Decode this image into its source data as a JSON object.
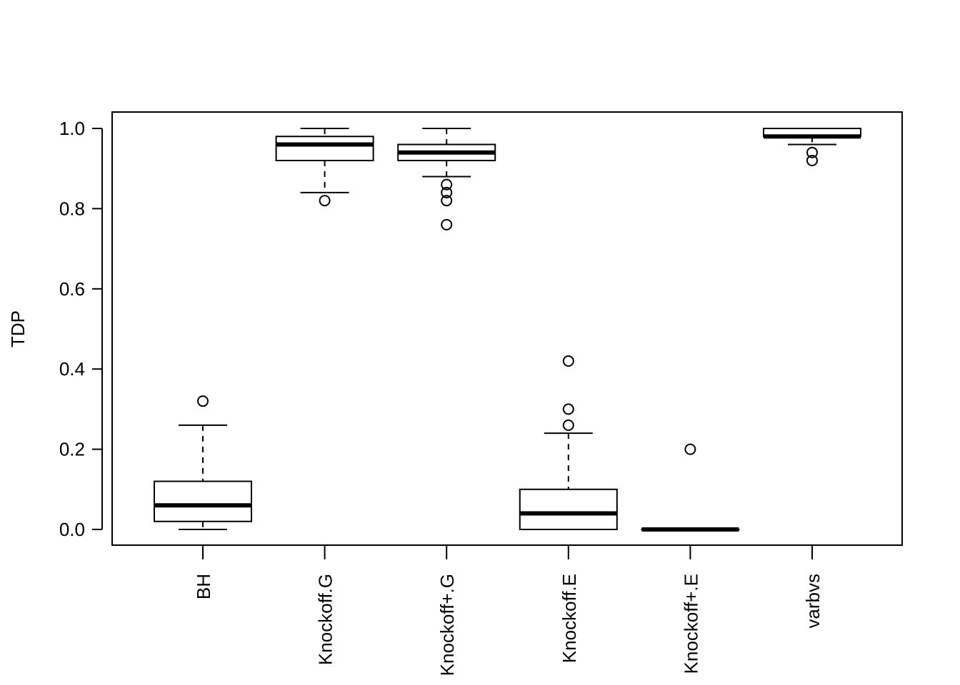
{
  "chart_data": {
    "type": "boxplot",
    "title": "",
    "xlabel": "",
    "ylabel": "TDP",
    "ylim": [
      -0.04,
      1.04
    ],
    "yticks": [
      0.0,
      0.2,
      0.4,
      0.6,
      0.8,
      1.0
    ],
    "ytick_labels": [
      "0.0",
      "0.2",
      "0.4",
      "0.6",
      "0.8",
      "1.0"
    ],
    "groups": [
      {
        "name": "BH",
        "whisker_low": 0.0,
        "q1": 0.02,
        "median": 0.06,
        "q3": 0.12,
        "whisker_high": 0.26,
        "outliers": [
          0.32
        ]
      },
      {
        "name": "Knockoff.G",
        "whisker_low": 0.84,
        "q1": 0.92,
        "median": 0.96,
        "q3": 0.98,
        "whisker_high": 1.0,
        "outliers": [
          0.82
        ]
      },
      {
        "name": "Knockoff+.G",
        "whisker_low": 0.88,
        "q1": 0.92,
        "median": 0.94,
        "q3": 0.96,
        "whisker_high": 1.0,
        "outliers": [
          0.86,
          0.84,
          0.82,
          0.76
        ]
      },
      {
        "name": "Knockoff.E",
        "whisker_low": 0.0,
        "q1": 0.0,
        "median": 0.04,
        "q3": 0.1,
        "whisker_high": 0.24,
        "outliers": [
          0.42,
          0.3,
          0.26
        ]
      },
      {
        "name": "Knockoff+.E",
        "whisker_low": 0.0,
        "q1": 0.0,
        "median": 0.0,
        "q3": 0.0,
        "whisker_high": 0.0,
        "outliers": [
          0.2
        ]
      },
      {
        "name": "varbvs",
        "whisker_low": 0.96,
        "q1": 0.98,
        "median": 0.98,
        "q3": 1.0,
        "whisker_high": 1.0,
        "outliers": [
          0.94,
          0.92
        ]
      }
    ]
  }
}
